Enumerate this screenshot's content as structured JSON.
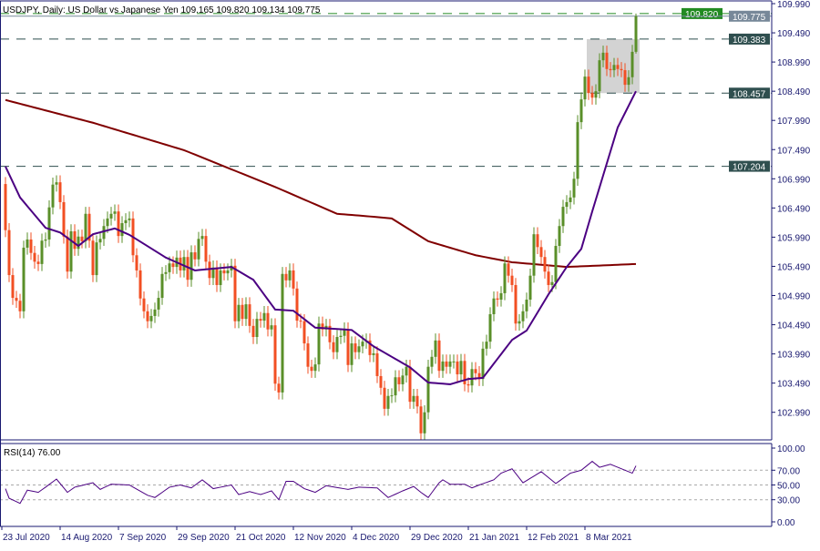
{
  "header": {
    "symbol_line": "USDJPY, Daily:  US Dollar vs Japanese Yen  109.165 109.820 109.134 109.775",
    "rsi_label": "RSI(14) 76.00"
  },
  "colors": {
    "bull": "#5a8f29",
    "bear": "#f24f23",
    "ma_fast": "#4b0082",
    "ma_slow": "#800000",
    "level_line": "#2f4f4f",
    "high_line": "#228b22",
    "bid_line": "#778899",
    "axis": "#191970",
    "rsi_line": "#4b0082",
    "zone_fill": "#d3d3d3"
  },
  "chart_data": {
    "type": "candlestick",
    "title": "USDJPY, Daily: US Dollar vs Japanese Yen",
    "last_bar": {
      "open": 109.165,
      "high": 109.82,
      "low": 109.134,
      "close": 109.775
    },
    "first_open": 106.9,
    "close": [
      106.11,
      105.34,
      104.95,
      104.9,
      104.72,
      105.81,
      105.95,
      105.72,
      105.57,
      105.53,
      105.93,
      105.95,
      106.5,
      106.89,
      106.93,
      106.59,
      106.0,
      105.4,
      106.09,
      105.79,
      106.0,
      105.92,
      106.39,
      105.93,
      105.34,
      105.9,
      105.96,
      106.18,
      106.31,
      106.39,
      106.43,
      106.01,
      106.23,
      106.28,
      106.31,
      105.68,
      105.42,
      104.94,
      104.72,
      104.55,
      104.64,
      104.75,
      104.95,
      105.36,
      105.39,
      105.54,
      105.48,
      105.64,
      105.42,
      105.65,
      105.26,
      105.73,
      105.61,
      105.96,
      106.01,
      105.57,
      105.29,
      105.47,
      105.17,
      105.42,
      105.37,
      105.42,
      105.5,
      104.55,
      104.83,
      104.59,
      104.84,
      104.47,
      104.28,
      104.59,
      104.56,
      104.69,
      104.41,
      104.48,
      103.48,
      103.33,
      105.36,
      105.25,
      105.42,
      105.11,
      104.56,
      104.55,
      104.17,
      103.77,
      103.7,
      103.81,
      104.51,
      104.41,
      104.47,
      104.19,
      104.02,
      104.28,
      104.3,
      104.41,
      103.8,
      104.17,
      104.02,
      104.12,
      104.2,
      104.22,
      103.97,
      104.0,
      103.61,
      103.41,
      103.05,
      103.27,
      103.28,
      103.59,
      103.47,
      103.62,
      103.77,
      103.17,
      103.27,
      103.09,
      102.63,
      102.99,
      103.77,
      103.94,
      104.22,
      103.7,
      103.86,
      103.77,
      103.86,
      103.86,
      103.64,
      103.87,
      103.47,
      103.45,
      103.73,
      103.66,
      103.56,
      104.08,
      104.2,
      104.67,
      104.94,
      104.92,
      105.03,
      105.54,
      105.33,
      105.17,
      104.51,
      104.55,
      104.72,
      104.92,
      105.33,
      106.04,
      105.82,
      105.65,
      105.4,
      105.17,
      105.22,
      105.84,
      106.18,
      106.51,
      106.59,
      106.67,
      106.99,
      107.96,
      108.35,
      108.74,
      108.46,
      108.38,
      108.49,
      109.02,
      109.15,
      108.87,
      108.85,
      108.94,
      108.87,
      108.85,
      108.6,
      108.73,
      109.165,
      109.775
    ],
    "ma_fast_anchors": [
      [
        0,
        107.2
      ],
      [
        4,
        106.67
      ],
      [
        11,
        106.15
      ],
      [
        15,
        106.07
      ],
      [
        20,
        105.84
      ],
      [
        24,
        106.04
      ],
      [
        30,
        106.14
      ],
      [
        34,
        106.03
      ],
      [
        44,
        105.64
      ],
      [
        52,
        105.42
      ],
      [
        62,
        105.48
      ],
      [
        68,
        105.26
      ],
      [
        74,
        104.75
      ],
      [
        79,
        104.73
      ],
      [
        85,
        104.44
      ],
      [
        95,
        104.4
      ],
      [
        101,
        104.12
      ],
      [
        111,
        103.76
      ],
      [
        116,
        103.5
      ],
      [
        122,
        103.47
      ],
      [
        127,
        103.56
      ],
      [
        131,
        103.58
      ],
      [
        139,
        104.23
      ],
      [
        143,
        104.39
      ],
      [
        149,
        105.01
      ],
      [
        154,
        105.48
      ],
      [
        158,
        105.79
      ],
      [
        161,
        106.43
      ],
      [
        168,
        107.87
      ],
      [
        173,
        108.49
      ]
    ],
    "ma_slow_anchors": [
      [
        0,
        108.34
      ],
      [
        24,
        107.95
      ],
      [
        49,
        107.48
      ],
      [
        74,
        106.85
      ],
      [
        91,
        106.39
      ],
      [
        99,
        106.35
      ],
      [
        106,
        106.31
      ],
      [
        116,
        105.92
      ],
      [
        129,
        105.68
      ],
      [
        139,
        105.56
      ],
      [
        154,
        105.48
      ],
      [
        173,
        105.53
      ]
    ],
    "levels": [
      {
        "label": "109.383",
        "value": 109.383,
        "kind": "level"
      },
      {
        "label": "108.457",
        "value": 108.457,
        "kind": "level"
      },
      {
        "label": "107.204",
        "value": 107.204,
        "kind": "level"
      },
      {
        "label": "109.820",
        "value": 109.82,
        "kind": "high"
      },
      {
        "label": "109.775",
        "value": 109.775,
        "kind": "bid"
      }
    ],
    "zone": {
      "from_bar": 160,
      "to_bar": 173,
      "top": 109.383,
      "bottom": 108.457
    },
    "y_ticks": [
      "109.990",
      "109.490",
      "108.990",
      "108.490",
      "107.990",
      "107.490",
      "106.990",
      "106.490",
      "105.990",
      "105.490",
      "104.990",
      "104.490",
      "103.990",
      "103.490",
      "102.990"
    ],
    "ylim": [
      102.5,
      110.05
    ],
    "x_ticks": [
      {
        "label": "23 Jul 2020",
        "bar": 0
      },
      {
        "label": "14 Aug 2020",
        "bar": 16
      },
      {
        "label": "7 Sep 2020",
        "bar": 32
      },
      {
        "label": "29 Sep 2020",
        "bar": 48
      },
      {
        "label": "21 Oct 2020",
        "bar": 64
      },
      {
        "label": "12 Nov 2020",
        "bar": 80
      },
      {
        "label": "4 Dec 2020",
        "bar": 96
      },
      {
        "label": "29 Dec 2020",
        "bar": 112
      },
      {
        "label": "21 Jan 2021",
        "bar": 128
      },
      {
        "label": "12 Feb 2021",
        "bar": 144
      },
      {
        "label": "8 Mar 2021",
        "bar": 160
      }
    ],
    "rsi": {
      "period": 14,
      "last": 76.0,
      "ylim": [
        0,
        100
      ],
      "y_ticks": [
        "100.00",
        "70.00",
        "50.00",
        "30.00",
        "0.00"
      ],
      "levels": [
        70,
        50,
        30
      ],
      "anchors": [
        [
          0,
          45
        ],
        [
          1,
          32
        ],
        [
          4,
          25
        ],
        [
          6,
          43
        ],
        [
          9,
          40
        ],
        [
          11,
          47
        ],
        [
          14,
          58
        ],
        [
          17,
          40
        ],
        [
          19,
          47
        ],
        [
          24,
          53
        ],
        [
          26,
          44
        ],
        [
          29,
          51
        ],
        [
          34,
          50
        ],
        [
          39,
          36
        ],
        [
          41,
          33
        ],
        [
          45,
          47
        ],
        [
          48,
          50
        ],
        [
          51,
          46
        ],
        [
          54,
          57
        ],
        [
          57,
          45
        ],
        [
          62,
          50
        ],
        [
          64,
          37
        ],
        [
          67,
          41
        ],
        [
          70,
          37
        ],
        [
          73,
          42
        ],
        [
          75,
          30
        ],
        [
          77,
          55
        ],
        [
          79,
          55
        ],
        [
          82,
          45
        ],
        [
          85,
          40
        ],
        [
          88,
          49
        ],
        [
          94,
          44
        ],
        [
          97,
          47
        ],
        [
          102,
          46
        ],
        [
          105,
          33
        ],
        [
          109,
          42
        ],
        [
          112,
          48
        ],
        [
          114,
          40
        ],
        [
          116,
          33
        ],
        [
          119,
          53
        ],
        [
          120,
          57
        ],
        [
          122,
          51
        ],
        [
          126,
          51
        ],
        [
          128,
          46
        ],
        [
          130,
          50
        ],
        [
          134,
          57
        ],
        [
          136,
          66
        ],
        [
          139,
          72
        ],
        [
          142,
          53
        ],
        [
          147,
          68
        ],
        [
          151,
          52
        ],
        [
          155,
          66
        ],
        [
          158,
          70
        ],
        [
          161,
          82
        ],
        [
          163,
          74
        ],
        [
          166,
          78
        ],
        [
          169,
          72
        ],
        [
          172,
          66
        ],
        [
          173,
          76
        ]
      ]
    }
  }
}
